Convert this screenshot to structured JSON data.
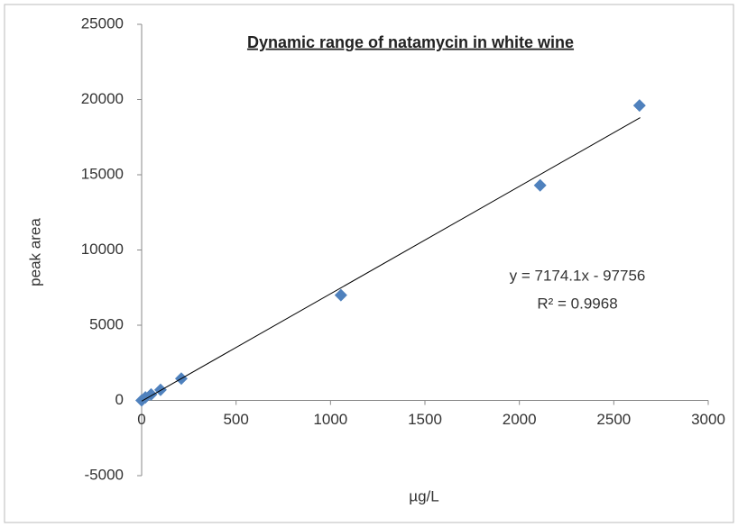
{
  "chart_data": {
    "type": "scatter",
    "title": "Dynamic range of natamycin  in white wine",
    "x_label": "µg/L",
    "y_label": "peak area",
    "annotations": [
      "y = 7174.1x - 97756",
      "R² = 0.9968"
    ],
    "series": [
      {
        "name": "natamycin",
        "color": "#4f81bd",
        "marker": "diamond",
        "x": [
          0,
          20,
          50,
          100,
          210,
          1055,
          2110,
          2636
        ],
        "values": [
          0,
          200,
          400,
          700,
          1450,
          7000,
          14300,
          19600
        ]
      },
      {
        "name": "trendline",
        "color": "#000000",
        "marker": "line",
        "x": [
          0,
          2640
        ],
        "values": [
          -50,
          18800
        ]
      }
    ],
    "xlim": [
      0,
      3000
    ],
    "xticks": [
      0,
      500,
      1000,
      1500,
      2000,
      2500,
      3000
    ],
    "ylim": [
      -5000,
      25000
    ],
    "yticks": [
      -5000,
      0,
      5000,
      10000,
      15000,
      20000,
      25000
    ],
    "grid": false
  }
}
